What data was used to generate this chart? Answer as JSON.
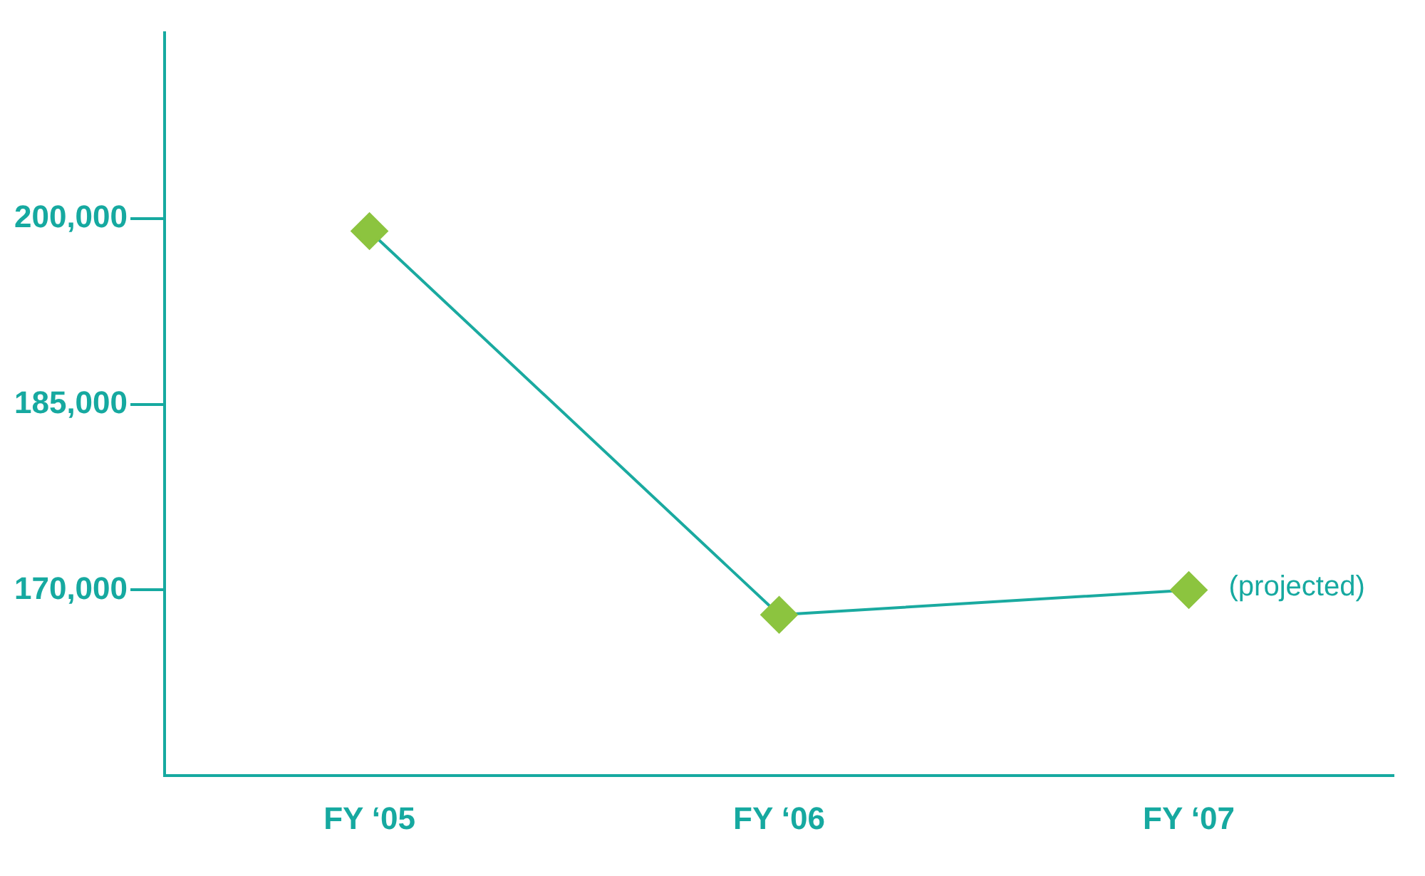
{
  "chart_data": {
    "type": "line",
    "categories": [
      "FY ‘05",
      "FY ‘06",
      "FY ‘07"
    ],
    "series": [
      {
        "color": "#1aaaa0",
        "colors": [
          "#8cc43f",
          "#8cc43f",
          "#8cc43f"
        ],
        "values": [
          199000,
          168000,
          170000
        ]
      }
    ],
    "marker": "diamond",
    "ylim": [
      155000,
      215000
    ],
    "yticks": [
      {
        "value": 170000,
        "label": "170,000"
      },
      {
        "value": 185000,
        "label": "185,000"
      },
      {
        "value": 200000,
        "label": "200,000"
      }
    ],
    "grid": false,
    "legend": false,
    "annotations": [
      {
        "text": "(projected)",
        "x": "FY ‘07",
        "y": 170000
      }
    ]
  }
}
